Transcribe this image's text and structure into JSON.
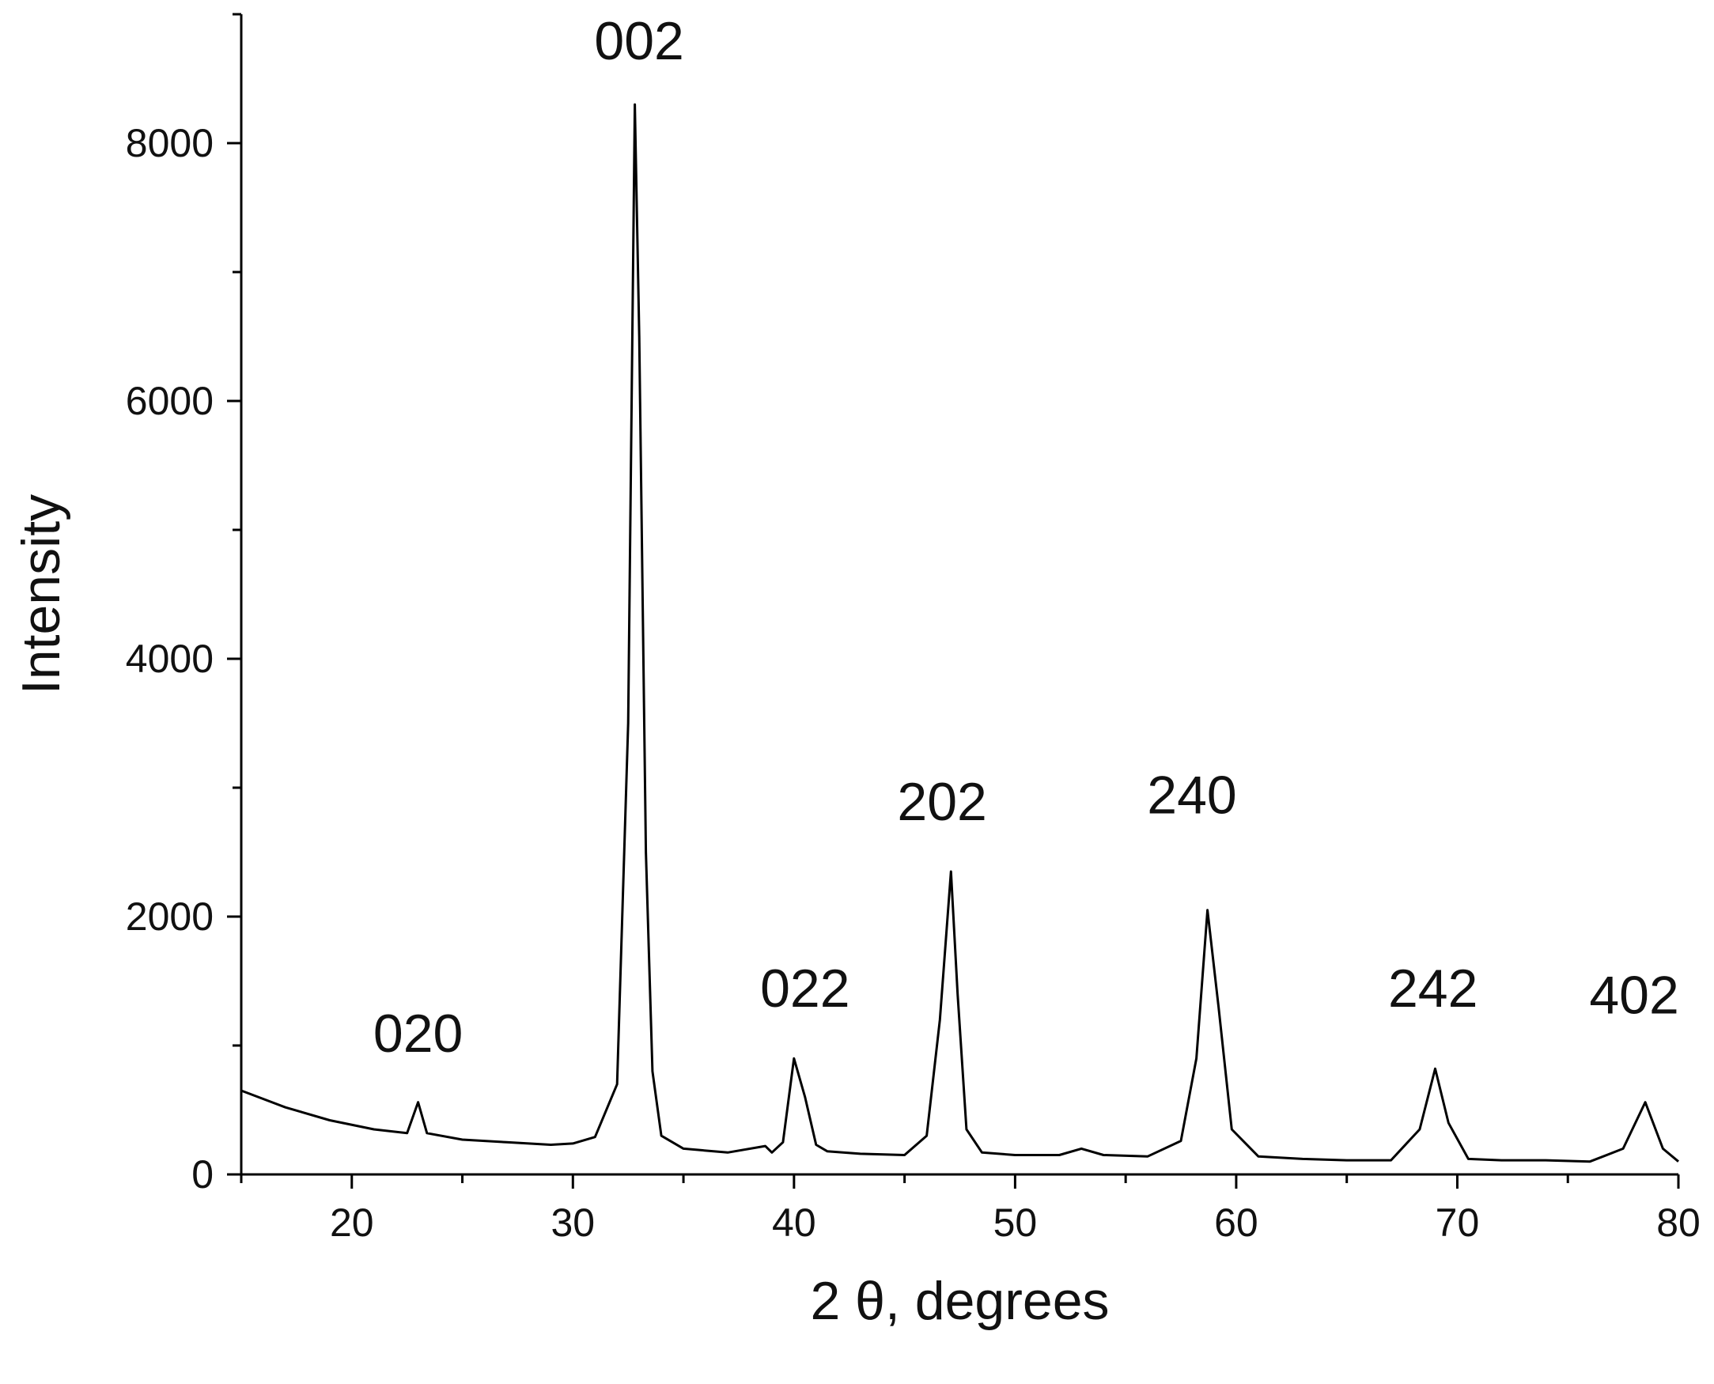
{
  "chart_data": {
    "type": "line",
    "title": "",
    "xlabel": "2 θ, degrees",
    "ylabel": "Intensity",
    "xlim": [
      15,
      80
    ],
    "ylim": [
      0,
      9000
    ],
    "xticks": [
      "20",
      "30",
      "40",
      "50",
      "60",
      "70",
      "80"
    ],
    "yticks": [
      "0",
      "2000",
      "4000",
      "6000",
      "8000"
    ],
    "grid": false,
    "legend": "none",
    "line_color": "#000000",
    "series": [
      {
        "x": [
          15,
          17,
          19,
          21,
          22.5,
          23.0,
          23.4,
          25,
          27,
          29,
          30,
          31,
          32,
          32.5,
          32.8,
          33.0,
          33.3,
          33.6,
          34,
          35,
          37,
          38.7,
          39.0,
          39.5,
          40.0,
          40.5,
          41.0,
          41.5,
          43,
          45,
          46,
          46.6,
          47.1,
          47.4,
          47.8,
          48.5,
          50,
          52,
          53,
          54,
          56,
          57.5,
          58.2,
          58.7,
          59.2,
          59.8,
          61,
          63,
          65,
          67,
          68.3,
          69.0,
          69.6,
          70.5,
          72,
          74,
          76,
          77.5,
          78.5,
          79.3,
          80
        ],
        "y": [
          650,
          520,
          420,
          350,
          320,
          560,
          320,
          270,
          250,
          230,
          240,
          290,
          700,
          3500,
          8300,
          6500,
          2500,
          800,
          300,
          200,
          170,
          220,
          170,
          250,
          900,
          600,
          230,
          180,
          160,
          150,
          300,
          1200,
          2350,
          1400,
          350,
          170,
          150,
          150,
          200,
          150,
          140,
          260,
          900,
          2050,
          1300,
          350,
          140,
          120,
          110,
          110,
          350,
          820,
          400,
          120,
          110,
          110,
          100,
          200,
          560,
          200,
          100
        ]
      }
    ],
    "annotations": [
      {
        "text": "020",
        "x": 23.0,
        "y": 950
      },
      {
        "text": "002",
        "x": 33.0,
        "y": 8650
      },
      {
        "text": "022",
        "x": 40.5,
        "y": 1300
      },
      {
        "text": "202",
        "x": 46.7,
        "y": 2750
      },
      {
        "text": "240",
        "x": 58.0,
        "y": 2800
      },
      {
        "text": "242",
        "x": 68.9,
        "y": 1300
      },
      {
        "text": "402",
        "x": 78.0,
        "y": 1250
      }
    ]
  }
}
